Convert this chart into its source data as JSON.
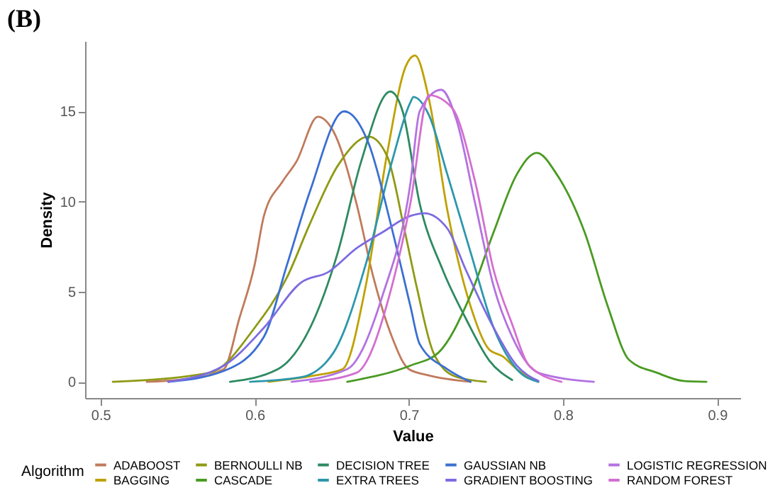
{
  "chart_data": {
    "type": "line",
    "title": "(B)",
    "xlabel": "Value",
    "ylabel": "Density",
    "legend_title": "Algorithm",
    "legend": "bottom",
    "xlim": [
      0.49,
      0.915
    ],
    "ylim": [
      -0.9,
      18.9
    ],
    "xticks": [
      0.5,
      0.6,
      0.7,
      0.8,
      0.9
    ],
    "yticks": [
      0,
      5,
      10,
      15
    ],
    "series": [
      {
        "name": "ADABOOST",
        "color": "#c07a5c",
        "x": [
          0.53,
          0.56,
          0.58,
          0.59,
          0.6,
          0.606,
          0.618,
          0.627,
          0.641,
          0.651,
          0.666,
          0.677,
          0.689,
          0.7,
          0.713,
          0.74
        ],
        "values": [
          0,
          0.2,
          0.7,
          3.5,
          6.5,
          9.2,
          11.1,
          12.2,
          14.7,
          13.9,
          9.9,
          5.8,
          2.5,
          0.7,
          0.35,
          0
        ]
      },
      {
        "name": "BAGGING",
        "color": "#bfa100",
        "x": [
          0.609,
          0.639,
          0.657,
          0.672,
          0.686,
          0.698,
          0.704,
          0.713,
          0.725,
          0.74,
          0.752,
          0.761,
          0.77,
          0.784
        ],
        "values": [
          0,
          0.35,
          0.7,
          5.3,
          12.7,
          17.5,
          18.1,
          15.7,
          9.5,
          4.2,
          1.8,
          1.4,
          0.7,
          0
        ]
      },
      {
        "name": "BERNOULLI NB",
        "color": "#8f9a14",
        "x": [
          0.508,
          0.571,
          0.6,
          0.621,
          0.636,
          0.654,
          0.674,
          0.686,
          0.697,
          0.705,
          0.716,
          0.73,
          0.75
        ],
        "values": [
          0,
          0.5,
          3,
          5.8,
          8.8,
          12,
          13.6,
          12.5,
          8.5,
          5.3,
          1.6,
          0.3,
          0
        ]
      },
      {
        "name": "CASCADE",
        "color": "#4a9a22",
        "x": [
          0.66,
          0.701,
          0.719,
          0.74,
          0.755,
          0.77,
          0.783,
          0.796,
          0.814,
          0.829,
          0.843,
          0.861,
          0.878,
          0.893
        ],
        "values": [
          0,
          0.9,
          1.6,
          4.8,
          8.3,
          11.5,
          12.7,
          11.5,
          8.3,
          4.2,
          1.2,
          0.5,
          0.05,
          0
        ]
      },
      {
        "name": "DECISION TREE",
        "color": "#2e8a62",
        "x": [
          0.584,
          0.615,
          0.636,
          0.654,
          0.669,
          0.688,
          0.696,
          0.707,
          0.722,
          0.737,
          0.752,
          0.767
        ],
        "values": [
          0,
          0.7,
          3,
          7.2,
          12.2,
          16.1,
          15,
          9.9,
          6.2,
          3.5,
          1.2,
          0.1
        ]
      },
      {
        "name": "EXTRA TREES",
        "color": "#2c97ab",
        "x": [
          0.597,
          0.63,
          0.651,
          0.672,
          0.689,
          0.701,
          0.703,
          0.713,
          0.725,
          0.74,
          0.755,
          0.77,
          0.784
        ],
        "values": [
          0,
          0.25,
          1.6,
          6.5,
          12.2,
          15.5,
          15.8,
          14.8,
          11.5,
          7.2,
          3,
          0.7,
          0
        ]
      },
      {
        "name": "GAUSSIAN NB",
        "color": "#3b6fd2",
        "x": [
          0.544,
          0.58,
          0.606,
          0.621,
          0.636,
          0.658,
          0.674,
          0.689,
          0.701,
          0.707,
          0.725,
          0.74
        ],
        "values": [
          0,
          0.6,
          2.5,
          6.5,
          10.6,
          15,
          13.2,
          8.5,
          4.2,
          2.1,
          0.7,
          0
        ]
      },
      {
        "name": "GRADIENT BOOSTING",
        "color": "#7d6be0",
        "x": [
          0.544,
          0.58,
          0.606,
          0.63,
          0.648,
          0.666,
          0.683,
          0.701,
          0.71,
          0.725,
          0.737,
          0.755,
          0.77,
          0.784
        ],
        "values": [
          0,
          0.9,
          3,
          5.5,
          6.1,
          7.4,
          8.3,
          9.2,
          9.35,
          8.5,
          6.2,
          3,
          0.9,
          0.05
        ]
      },
      {
        "name": "LOGISTIC REGRESSION",
        "color": "#b372e2",
        "x": [
          0.624,
          0.66,
          0.683,
          0.701,
          0.707,
          0.721,
          0.731,
          0.743,
          0.755,
          0.767,
          0.784,
          0.82
        ],
        "values": [
          0,
          0.7,
          4.8,
          11,
          15,
          16.2,
          14.5,
          9.9,
          5.3,
          2.5,
          0.5,
          0
        ]
      },
      {
        "name": "RANDOM FOREST",
        "color": "#d36fd0",
        "x": [
          0.636,
          0.666,
          0.689,
          0.701,
          0.713,
          0.728,
          0.743,
          0.755,
          0.767,
          0.778,
          0.799
        ],
        "values": [
          0,
          0.5,
          5.3,
          9.9,
          15.9,
          15.2,
          11.1,
          6.2,
          3.2,
          0.9,
          0
        ]
      }
    ]
  }
}
